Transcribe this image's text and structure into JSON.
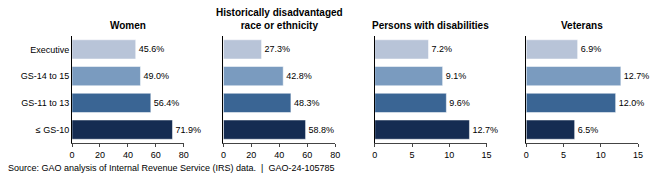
{
  "chart_data": [
    {
      "type": "bar",
      "orientation": "horizontal",
      "title": "Women",
      "categories": [
        "Executive",
        "GS-14 to 15",
        "GS-11 to 13",
        "≤ GS-10"
      ],
      "values": [
        45.6,
        49.0,
        56.4,
        71.9
      ],
      "value_labels": [
        "45.6%",
        "49.0%",
        "56.4%",
        "71.9%"
      ],
      "colors": [
        "#b8c4d8",
        "#7a9bbf",
        "#3a6594",
        "#152c52"
      ],
      "xlim": [
        0,
        80
      ],
      "xticks": [
        0,
        20,
        40,
        60,
        80
      ],
      "data_labels": true,
      "grid": false
    },
    {
      "type": "bar",
      "orientation": "horizontal",
      "title": "Historically disadvantaged\nrace or ethnicity",
      "categories": [
        "Executive",
        "GS-14 to 15",
        "GS-11 to 13",
        "≤ GS-10"
      ],
      "values": [
        27.3,
        42.8,
        48.3,
        58.8
      ],
      "value_labels": [
        "27.3%",
        "42.8%",
        "48.3%",
        "58.8%"
      ],
      "colors": [
        "#b8c4d8",
        "#7a9bbf",
        "#3a6594",
        "#152c52"
      ],
      "xlim": [
        0,
        80
      ],
      "xticks": [
        0,
        20,
        40,
        60,
        80
      ],
      "data_labels": true,
      "grid": false,
      "tick_labels": "x"
    },
    {
      "type": "bar",
      "orientation": "horizontal",
      "title": "Persons with disabilities",
      "categories": [
        "Executive",
        "GS-14 to 15",
        "GS-11 to 13",
        "≤ GS-10"
      ],
      "values": [
        7.2,
        9.1,
        9.6,
        12.7
      ],
      "value_labels": [
        "7.2%",
        "9.1%",
        "9.6%",
        "12.7%"
      ],
      "colors": [
        "#b8c4d8",
        "#7a9bbf",
        "#3a6594",
        "#152c52"
      ],
      "xlim": [
        0,
        15
      ],
      "xticks": [
        0,
        5,
        10,
        15
      ],
      "data_labels": true,
      "grid": false,
      "tick_labels": "x"
    },
    {
      "type": "bar",
      "orientation": "horizontal",
      "title": "Veterans",
      "categories": [
        "Executive",
        "GS-14 to 15",
        "GS-11 to 13",
        "≤ GS-10"
      ],
      "values": [
        6.9,
        12.7,
        12.0,
        6.5
      ],
      "value_labels": [
        "6.9%",
        "12.7%",
        "12.0%",
        "6.5%"
      ],
      "colors": [
        "#b8c4d8",
        "#7a9bbf",
        "#3a6594",
        "#152c52"
      ],
      "xlim": [
        0,
        15
      ],
      "xticks": [
        0,
        5,
        10,
        15
      ],
      "data_labels": true,
      "grid": false,
      "tick_labels": "x"
    }
  ],
  "annotations": [
    "Source: GAO analysis of Internal Revenue Service (IRS) data.  |  GAO-24-105785"
  ]
}
